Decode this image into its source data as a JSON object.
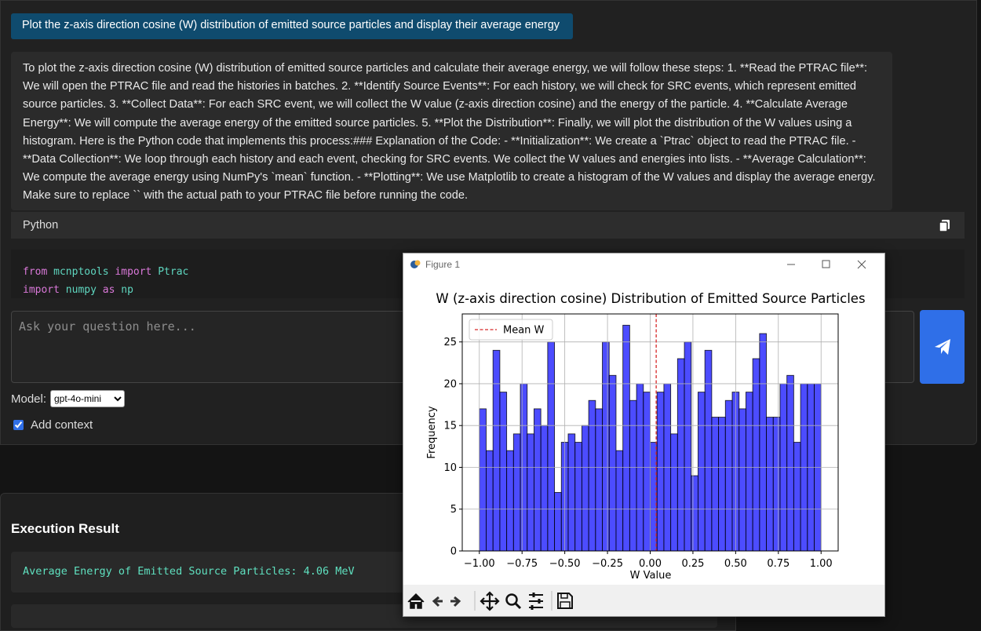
{
  "prompt": "Plot the z-axis direction cosine (W) distribution of emitted source particles and display their average energy",
  "response": "To plot the z-axis direction cosine (W) distribution of emitted source particles and calculate their average energy, we will follow these steps: 1. **Read the PTRAC file**: We will open the PTRAC file and read the histories in batches. 2. **Identify Source Events**: For each history, we will check for SRC events, which represent emitted source particles. 3. **Collect Data**: For each SRC event, we will collect the W value (z-axis direction cosine) and the energy of the particle. 4. **Calculate Average Energy**: We will compute the average energy of the emitted source particles. 5. **Plot the Distribution**: Finally, we will plot the distribution of the W values using a histogram. Here is the Python code that implements this process:### Explanation of the Code: - **Initialization**: We create a `Ptrac` object to read the PTRAC file. - **Data Collection**: We loop through each history and each event, checking for SRC events. We collect the W values and energies into lists. - **Average Calculation**: We compute the average energy using NumPy's `mean` function. - **Plotting**: We use Matplotlib to create a histogram of the W values and display the average energy. Make sure to replace `` with the actual path to your PTRAC file before running the code.",
  "code_language": "Python",
  "code_lines": [
    [
      "from",
      "mcnptools",
      "import",
      "Ptrac"
    ],
    [
      "import",
      "numpy",
      "as",
      "np"
    ]
  ],
  "input_placeholder": "Ask your question here...",
  "model_label": "Model:",
  "model_option": "gpt-4o-mini",
  "add_context": "Add context",
  "execution_title": "Execution Result",
  "execution_output": "Average Energy of Emitted Source Particles: 4.06 MeV",
  "figure_window_title": "Figure 1",
  "chart_data": {
    "type": "histogram",
    "title": "W (z-axis direction cosine) Distribution of Emitted Source Particles",
    "x_label": "W Value",
    "y_label": "Frequency",
    "bins": [
      -1,
      -0.96,
      -0.92,
      -0.88,
      -0.84,
      -0.8,
      -0.76,
      -0.72,
      -0.68,
      -0.64,
      -0.6,
      -0.56,
      -0.52,
      -0.48,
      -0.44,
      -0.4,
      -0.36,
      -0.32,
      -0.28,
      -0.24,
      -0.2,
      -0.16,
      -0.12,
      -0.08,
      -0.04,
      0,
      0.04,
      0.08,
      0.12,
      0.16,
      0.2,
      0.24,
      0.28,
      0.32,
      0.36,
      0.4,
      0.44,
      0.48,
      0.52,
      0.56,
      0.6,
      0.64,
      0.68,
      0.72,
      0.76,
      0.8,
      0.84,
      0.88,
      0.92,
      0.96,
      1
    ],
    "values": [
      17,
      12,
      24,
      19,
      12,
      14,
      20,
      14,
      17,
      15,
      25,
      7,
      13,
      14,
      13,
      15,
      18,
      17,
      25,
      21,
      12,
      27,
      18,
      20,
      19,
      13,
      19,
      20,
      14,
      23,
      25,
      9,
      19,
      24,
      16,
      16,
      18,
      19,
      17,
      19,
      23,
      26,
      16,
      16,
      20,
      21,
      13,
      20,
      20,
      20
    ],
    "color": "#0000ff",
    "mean_line": {
      "name": "Mean W",
      "value": 0.035,
      "color": "#d62728"
    },
    "xlim": [
      -1.1,
      1.1
    ],
    "ylim": [
      0,
      28.35
    ],
    "xticks": [
      {
        "value": -1,
        "label": "−1.00"
      },
      {
        "value": -0.75,
        "label": "−0.75"
      },
      {
        "value": -0.5,
        "label": "−0.50"
      },
      {
        "value": -0.25,
        "label": "−0.25"
      },
      {
        "value": 0,
        "label": "0.00"
      },
      {
        "value": 0.25,
        "label": "0.25"
      },
      {
        "value": 0.5,
        "label": "0.50"
      },
      {
        "value": 0.75,
        "label": "0.75"
      },
      {
        "value": 1,
        "label": "1.00"
      }
    ],
    "yticks": [
      0,
      5,
      10,
      15,
      20,
      25
    ],
    "grid": true,
    "legend": "upper left"
  }
}
